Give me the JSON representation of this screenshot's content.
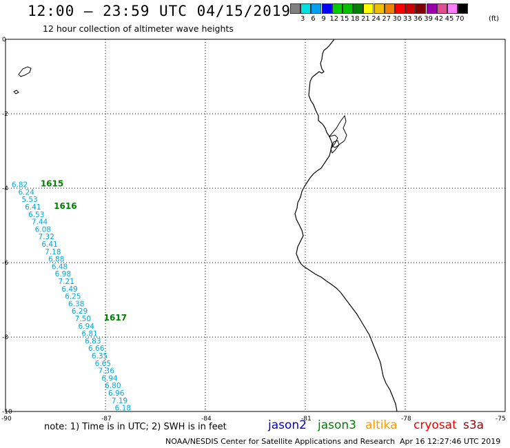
{
  "title": "12:00 — 23:59 UTC 04/15/2019",
  "subtitle": "12 hour collection of altimeter wave heights",
  "color_scale": {
    "colors": [
      "#808080",
      "#00e0e0",
      "#00a0f0",
      "#0000ff",
      "#00cc00",
      "#00c000",
      "#008000",
      "#ffff00",
      "#f0c000",
      "#f08000",
      "#ff0000",
      "#cc0000",
      "#800000",
      "#9900aa",
      "#e05090",
      "#ff80ff",
      "#000000"
    ],
    "labels": [
      "3",
      "6",
      "9",
      "12",
      "15",
      "18",
      "21",
      "24",
      "27",
      "30",
      "33",
      "36",
      "39",
      "42",
      "45",
      "70"
    ],
    "unit": "(ft)"
  },
  "axes": {
    "lat_labels": [
      "0",
      "-2",
      "-4",
      "-6",
      "-8",
      "-10"
    ],
    "lon_labels": [
      "-90",
      "-87",
      "-84",
      "-81",
      "-78",
      "-75"
    ]
  },
  "track": {
    "color": "#00aadd",
    "points": [
      {
        "lon": -89.9,
        "lat": -3.9,
        "swh": "6.82"
      },
      {
        "lon": -89.7,
        "lat": -4.1,
        "swh": "6.24"
      },
      {
        "lon": -89.6,
        "lat": -4.3,
        "swh": "5.53"
      },
      {
        "lon": -89.5,
        "lat": -4.5,
        "swh": "6.41"
      },
      {
        "lon": -89.4,
        "lat": -4.7,
        "swh": "6.53"
      },
      {
        "lon": -89.3,
        "lat": -4.9,
        "swh": "7.44"
      },
      {
        "lon": -89.2,
        "lat": -5.1,
        "swh": "6.08"
      },
      {
        "lon": -89.1,
        "lat": -5.3,
        "swh": "7.32"
      },
      {
        "lon": -89.0,
        "lat": -5.5,
        "swh": "6.41"
      },
      {
        "lon": -88.9,
        "lat": -5.7,
        "swh": "7.18"
      },
      {
        "lon": -88.8,
        "lat": -5.9,
        "swh": "6.88"
      },
      {
        "lon": -88.7,
        "lat": -6.1,
        "swh": "6.48"
      },
      {
        "lon": -88.6,
        "lat": -6.3,
        "swh": "6.98"
      },
      {
        "lon": -88.5,
        "lat": -6.5,
        "swh": "7.21"
      },
      {
        "lon": -88.4,
        "lat": -6.7,
        "swh": "6.49"
      },
      {
        "lon": -88.3,
        "lat": -6.9,
        "swh": "6.25"
      },
      {
        "lon": -88.2,
        "lat": -7.1,
        "swh": "6.38"
      },
      {
        "lon": -88.1,
        "lat": -7.3,
        "swh": "6.29"
      },
      {
        "lon": -88.0,
        "lat": -7.5,
        "swh": "7.50"
      },
      {
        "lon": -87.9,
        "lat": -7.7,
        "swh": "6.94"
      },
      {
        "lon": -87.8,
        "lat": -7.9,
        "swh": "6.81"
      },
      {
        "lon": -87.7,
        "lat": -8.1,
        "swh": "6.83"
      },
      {
        "lon": -87.6,
        "lat": -8.3,
        "swh": "6.66"
      },
      {
        "lon": -87.5,
        "lat": -8.5,
        "swh": "6.35"
      },
      {
        "lon": -87.4,
        "lat": -8.7,
        "swh": "6.65"
      },
      {
        "lon": -87.3,
        "lat": -8.9,
        "swh": "7.36"
      },
      {
        "lon": -87.2,
        "lat": -9.1,
        "swh": "6.94"
      },
      {
        "lon": -87.1,
        "lat": -9.3,
        "swh": "6.80"
      },
      {
        "lon": -87.0,
        "lat": -9.5,
        "swh": "6.96"
      },
      {
        "lon": -86.9,
        "lat": -9.7,
        "swh": "7.19"
      },
      {
        "lon": -86.8,
        "lat": -9.9,
        "swh": "6.18"
      }
    ],
    "time_labels": [
      {
        "text": "1615",
        "at": 0
      },
      {
        "text": "1616",
        "at": 3
      },
      {
        "text": "1617",
        "at": 18
      }
    ],
    "time_label_color": "#008000"
  },
  "note": "note:  1) Time is in UTC;  2) SWH is in feet",
  "satellites": [
    {
      "name": "jason2",
      "color": "#0000cc"
    },
    {
      "name": "jason3",
      "color": "#008000"
    },
    {
      "name": "altika",
      "color": "#ff9900"
    },
    {
      "name": "cryosat",
      "color": "#ee0000"
    },
    {
      "name": "s3a",
      "color": "#990000"
    }
  ],
  "credit": "NOAA/NESDIS Center for Satellite Applications and Research",
  "timestamp": "Apr 16 12:27:46 UTC 2019"
}
